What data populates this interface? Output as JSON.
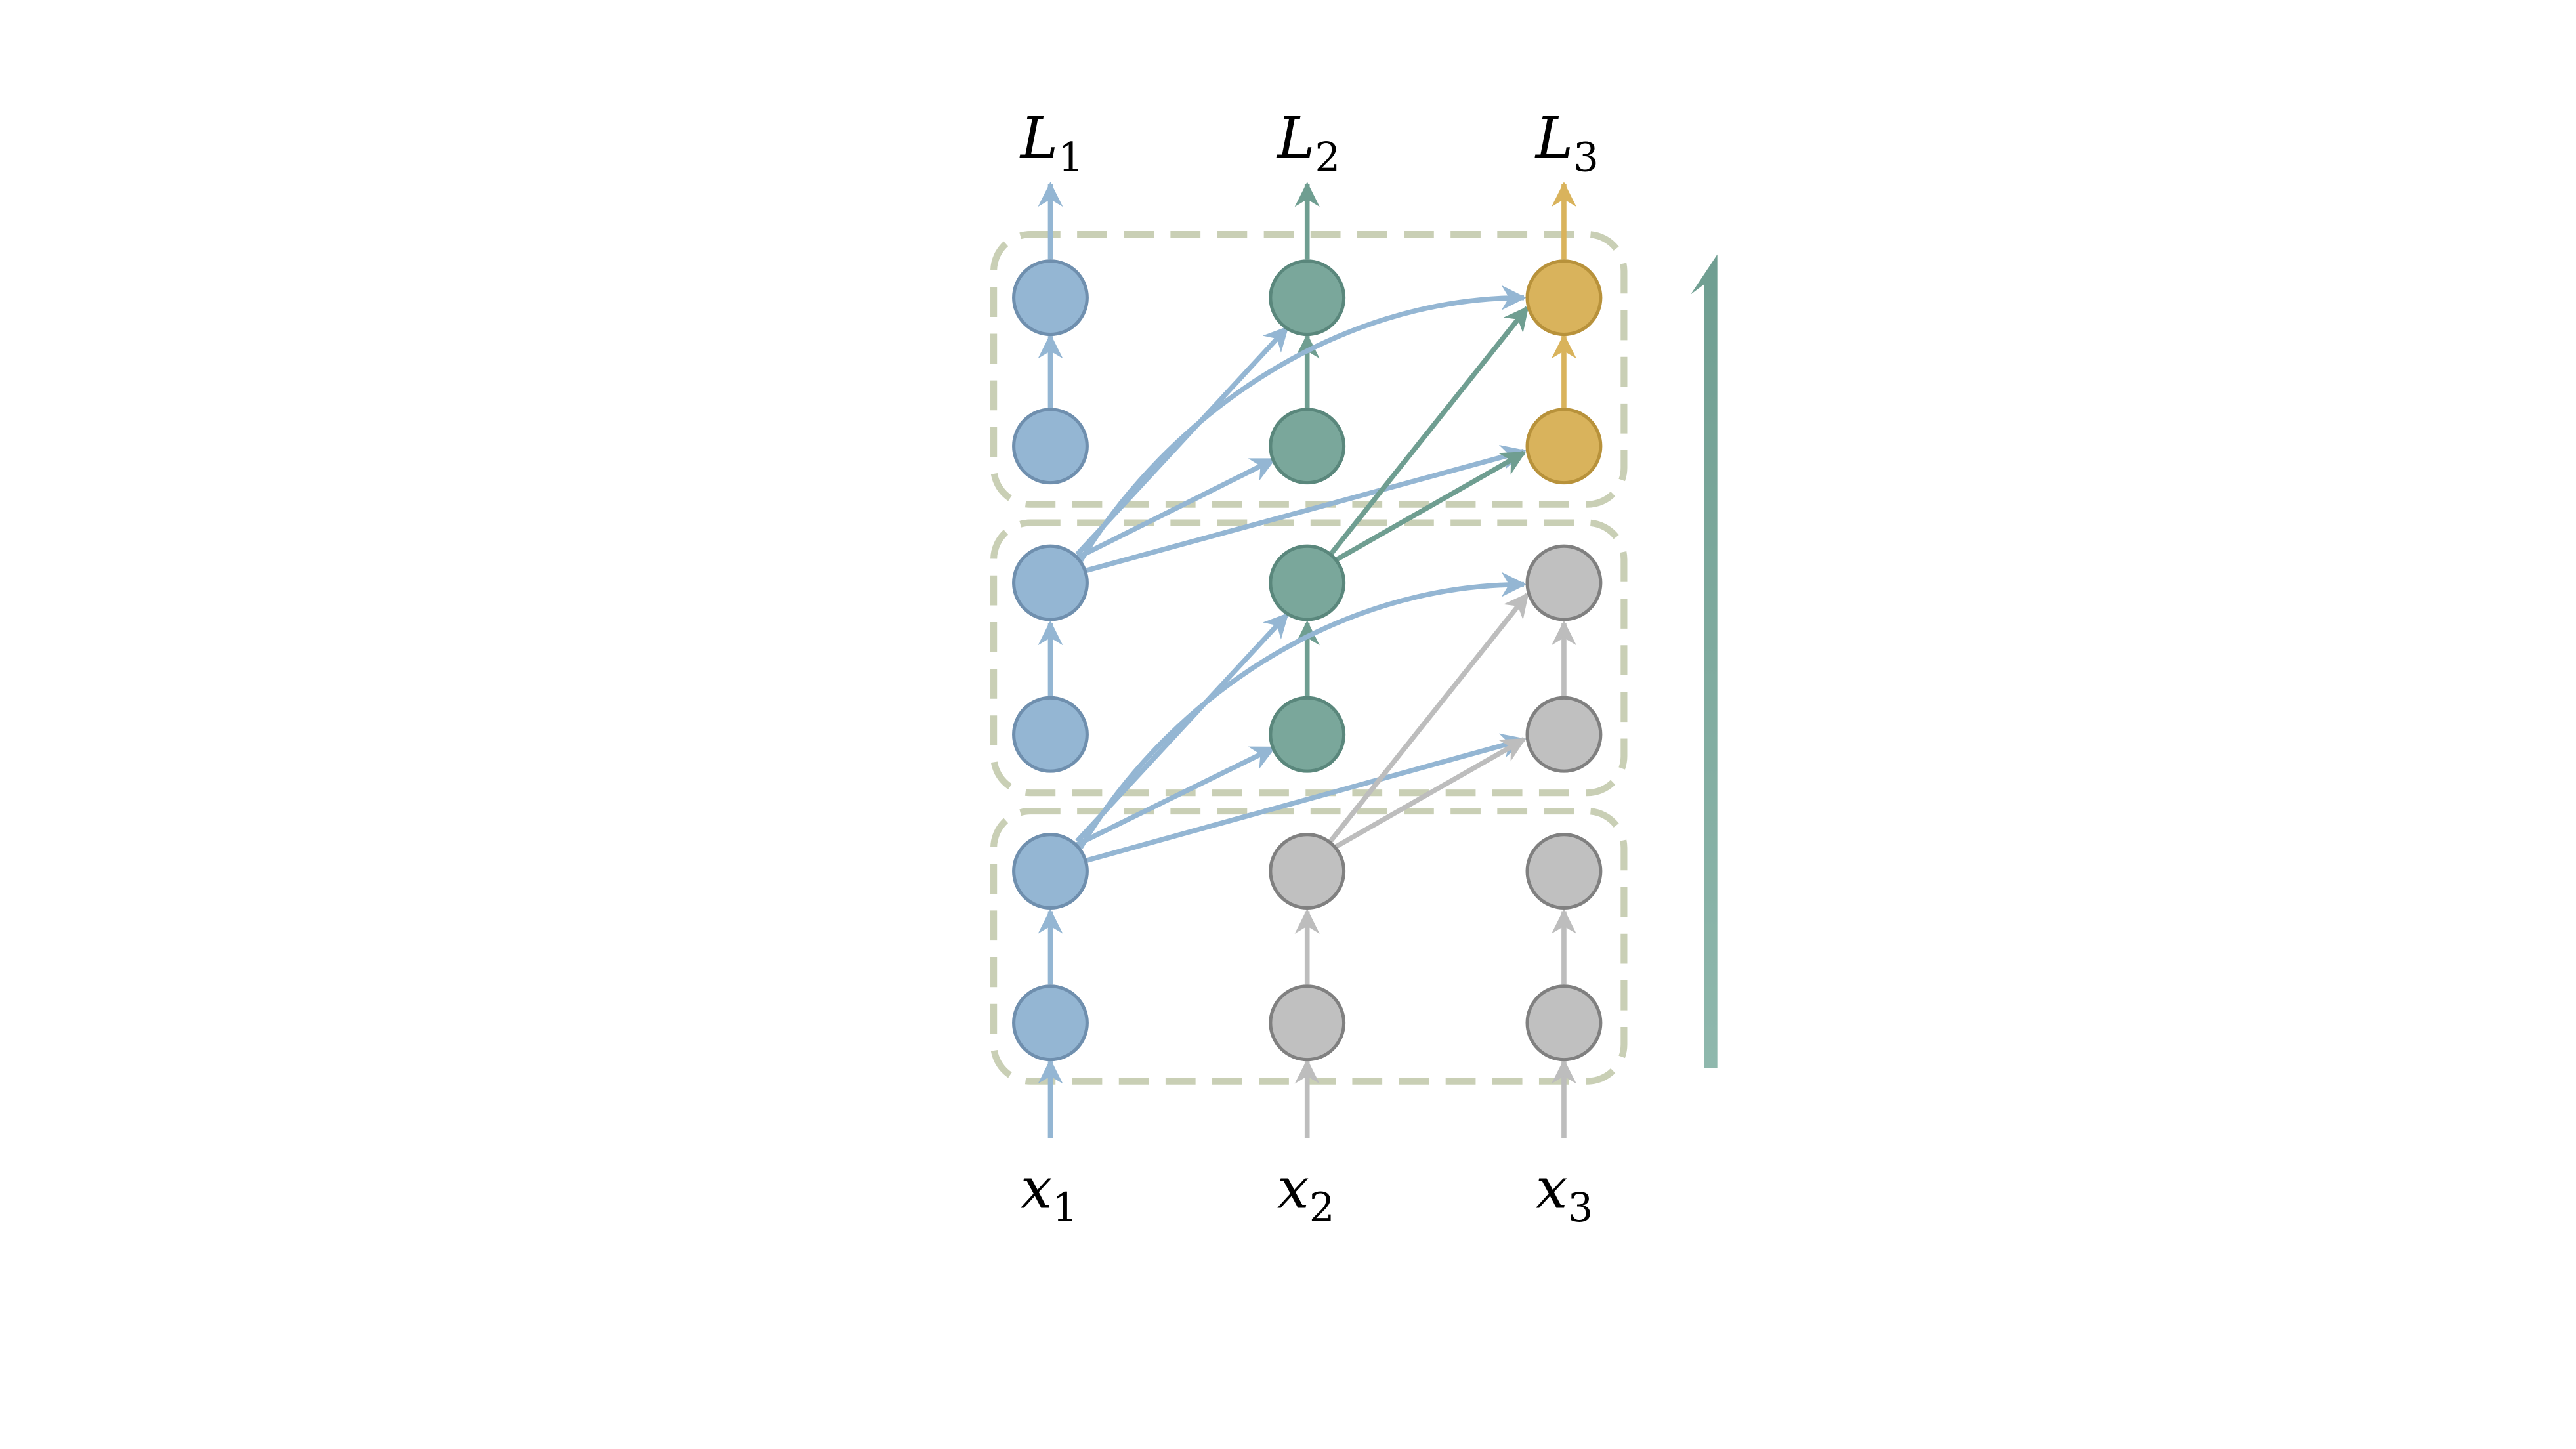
{
  "diagram": {
    "outputs": [
      {
        "base": "L",
        "sub": "1"
      },
      {
        "base": "L",
        "sub": "2"
      },
      {
        "base": "L",
        "sub": "3"
      }
    ],
    "inputs": [
      {
        "base": "x",
        "sub": "1"
      },
      {
        "base": "x",
        "sub": "2"
      },
      {
        "base": "x",
        "sub": "3"
      }
    ],
    "colors": {
      "blue": "#94b6d3",
      "blue_stroke": "#6f8fae",
      "green": "#7aa79b",
      "green_stroke": "#5a877c",
      "gold": "#d9b35c",
      "gold_stroke": "#b8923b",
      "gray": "#c0c0c0",
      "gray_stroke": "#808080",
      "box_border": "#c9cfb5",
      "big_arrow": "#7aa79b"
    }
  }
}
